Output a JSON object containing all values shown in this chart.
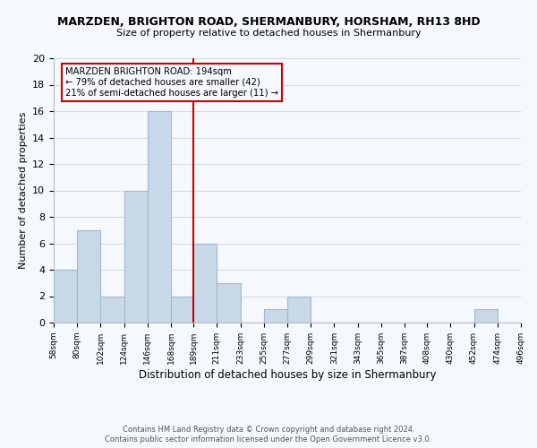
{
  "title": "MARZDEN, BRIGHTON ROAD, SHERMANBURY, HORSHAM, RH13 8HD",
  "subtitle": "Size of property relative to detached houses in Shermanbury",
  "xlabel": "Distribution of detached houses by size in Shermanbury",
  "ylabel": "Number of detached properties",
  "bar_color": "#c8d8e8",
  "bar_edge_color": "#a0b8d0",
  "bins": [
    "58sqm",
    "80sqm",
    "102sqm",
    "124sqm",
    "146sqm",
    "168sqm",
    "189sqm",
    "211sqm",
    "233sqm",
    "255sqm",
    "277sqm",
    "299sqm",
    "321sqm",
    "343sqm",
    "365sqm",
    "387sqm",
    "408sqm",
    "430sqm",
    "452sqm",
    "474sqm",
    "496sqm"
  ],
  "counts": [
    4,
    7,
    2,
    10,
    16,
    2,
    6,
    3,
    0,
    1,
    2,
    0,
    0,
    0,
    0,
    0,
    0,
    0,
    1,
    0
  ],
  "bin_edges_numeric": [
    58,
    80,
    102,
    124,
    146,
    168,
    189,
    211,
    233,
    255,
    277,
    299,
    321,
    343,
    365,
    387,
    408,
    430,
    452,
    474,
    496
  ],
  "ylim": [
    0,
    20
  ],
  "yticks": [
    0,
    2,
    4,
    6,
    8,
    10,
    12,
    14,
    16,
    18,
    20
  ],
  "property_line_x": 189,
  "property_line_color": "#cc0000",
  "annotation_box_edge_color": "#cc0000",
  "annotation_text_line1": "MARZDEN BRIGHTON ROAD: 194sqm",
  "annotation_text_line2": "← 79% of detached houses are smaller (42)",
  "annotation_text_line3": "21% of semi-detached houses are larger (11) →",
  "footnote1": "Contains HM Land Registry data © Crown copyright and database right 2024.",
  "footnote2": "Contains public sector information licensed under the Open Government Licence v3.0.",
  "grid_color": "#d0dce8",
  "background_color": "#f5f8fc",
  "spine_color": "#bbbbbb"
}
